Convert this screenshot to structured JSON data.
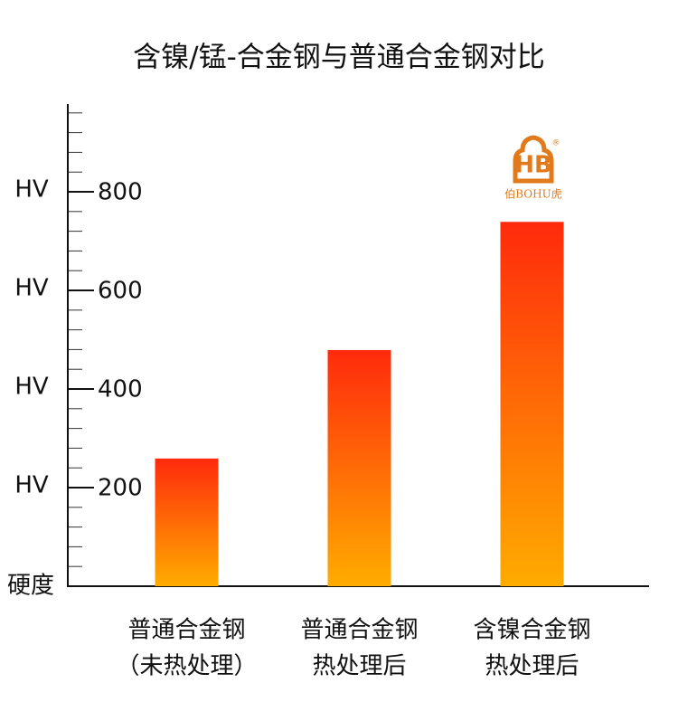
{
  "chart_data": {
    "type": "bar",
    "title": "含镍/锰-合金钢与普通合金钢对比",
    "y_label": "硬度",
    "y_unit": "HV",
    "categories": [
      [
        "普通合金钢",
        "（未热处理）"
      ],
      [
        "普通合金钢",
        "热处理后"
      ],
      [
        "含镍合金钢",
        "热处理后"
      ]
    ],
    "values": [
      259,
      479,
      739
    ],
    "colors": [
      "#ff2a0c",
      "#ffac00"
    ],
    "ylim": [
      0,
      978
    ],
    "yticks": [
      200,
      400,
      600,
      800
    ],
    "minor_yticks": [
      40,
      80,
      120,
      160,
      240,
      280,
      320,
      360,
      440,
      480,
      520,
      560,
      640,
      680,
      720,
      760,
      840,
      880,
      920,
      960
    ],
    "logo": {
      "text": "伯BOHU虎"
    }
  }
}
